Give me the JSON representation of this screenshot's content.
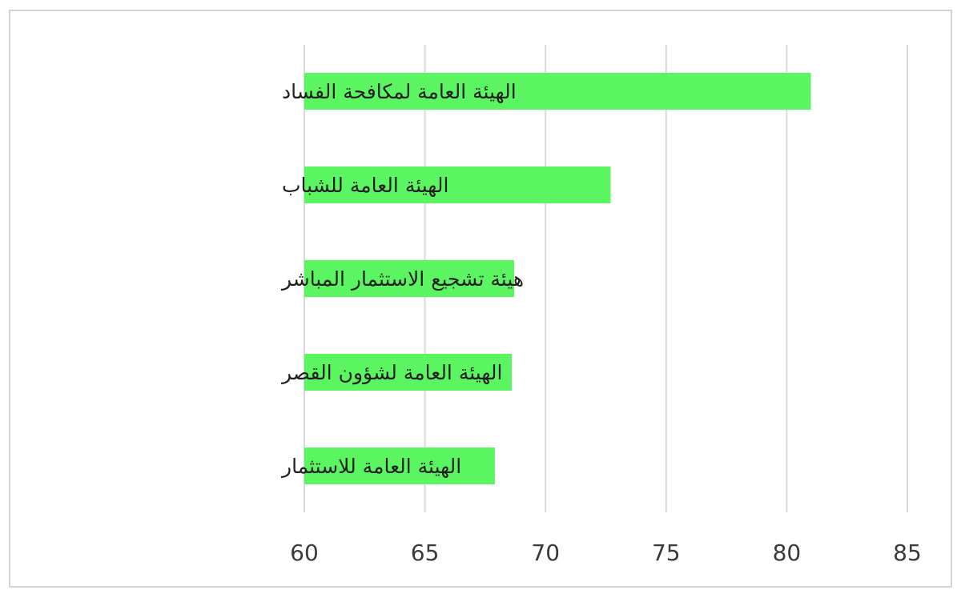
{
  "chart_data": {
    "type": "bar",
    "orientation": "horizontal",
    "categories": [
      "الهيئة العامة لمكافحة الفساد",
      "الهيئة العامة للشباب",
      "هيئة تشجيع الاستثمار المباشر",
      "الهيئة العامة لشؤون القصر",
      "الهيئة العامة للاستثمار"
    ],
    "values": [
      81,
      72.7,
      68.7,
      68.6,
      67.9
    ],
    "xlim": [
      60,
      85
    ],
    "xticks": [
      60,
      65,
      70,
      75,
      80,
      85
    ],
    "title": "",
    "xlabel": "",
    "ylabel": "",
    "grid": "vertical",
    "legend": "none",
    "bar_color": "#5cf562",
    "grid_color": "#d9d9d9"
  }
}
